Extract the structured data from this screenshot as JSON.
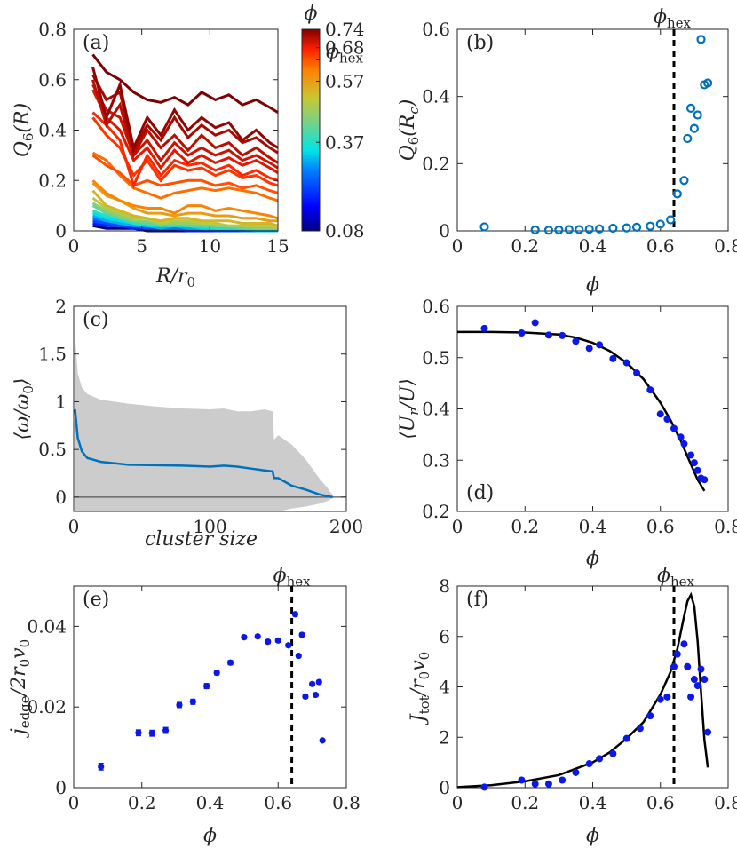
{
  "figure": {
    "phi_hex_label": "ϕhex",
    "cb_title": "ϕ"
  },
  "chart_data": [
    {
      "panel": "a",
      "panel_label": "(a)",
      "type": "line",
      "xlabel": "R/r0",
      "ylabel": "Q6(R)",
      "xlim": [
        0,
        15
      ],
      "ylim": [
        0,
        0.8
      ],
      "xticks": [
        0,
        5,
        10,
        15
      ],
      "yticks": [
        0,
        0.2,
        0.4,
        0.6,
        0.8
      ],
      "x": [
        1.4,
        2.4,
        3.4,
        4.4,
        5.4,
        6.4,
        7.4,
        8.4,
        9.4,
        10.4,
        11.4,
        12.4,
        13.4,
        14.4,
        15
      ],
      "series": [
        {
          "phi": 0.74,
          "values": [
            0.7,
            0.63,
            0.6,
            0.55,
            0.52,
            0.51,
            0.53,
            0.5,
            0.55,
            0.52,
            0.54,
            0.5,
            0.52,
            0.49,
            0.47
          ]
        },
        {
          "phi": 0.73,
          "values": [
            0.65,
            0.45,
            0.58,
            0.33,
            0.45,
            0.38,
            0.48,
            0.4,
            0.45,
            0.41,
            0.43,
            0.36,
            0.4,
            0.35,
            0.33
          ]
        },
        {
          "phi": 0.72,
          "values": [
            0.62,
            0.52,
            0.55,
            0.32,
            0.42,
            0.36,
            0.45,
            0.37,
            0.42,
            0.38,
            0.4,
            0.35,
            0.37,
            0.33,
            0.31
          ]
        },
        {
          "phi": 0.71,
          "values": [
            0.6,
            0.42,
            0.5,
            0.3,
            0.4,
            0.33,
            0.38,
            0.32,
            0.38,
            0.33,
            0.35,
            0.3,
            0.33,
            0.29,
            0.27
          ]
        },
        {
          "phi": 0.7,
          "values": [
            0.58,
            0.48,
            0.45,
            0.3,
            0.36,
            0.28,
            0.35,
            0.3,
            0.33,
            0.3,
            0.32,
            0.28,
            0.3,
            0.27,
            0.25
          ]
        },
        {
          "phi": 0.69,
          "values": [
            0.56,
            0.45,
            0.4,
            0.28,
            0.33,
            0.25,
            0.32,
            0.27,
            0.3,
            0.27,
            0.29,
            0.26,
            0.28,
            0.25,
            0.23
          ]
        },
        {
          "phi": 0.67,
          "values": [
            0.47,
            0.42,
            0.36,
            0.18,
            0.3,
            0.22,
            0.28,
            0.26,
            0.27,
            0.24,
            0.26,
            0.22,
            0.24,
            0.21,
            0.2
          ]
        },
        {
          "phi": 0.66,
          "values": [
            0.45,
            0.38,
            0.33,
            0.22,
            0.28,
            0.2,
            0.26,
            0.24,
            0.25,
            0.22,
            0.24,
            0.21,
            0.22,
            0.19,
            0.18
          ]
        },
        {
          "phi": 0.64,
          "values": [
            0.3,
            0.26,
            0.23,
            0.18,
            0.2,
            0.18,
            0.19,
            0.2,
            0.2,
            0.18,
            0.19,
            0.17,
            0.18,
            0.16,
            0.15
          ]
        },
        {
          "phi": 0.62,
          "values": [
            0.31,
            0.28,
            0.22,
            0.17,
            0.15,
            0.13,
            0.15,
            0.16,
            0.17,
            0.16,
            0.17,
            0.16,
            0.15,
            0.13,
            0.12
          ]
        },
        {
          "phi": 0.6,
          "values": [
            0.2,
            0.15,
            0.12,
            0.1,
            0.09,
            0.09,
            0.07,
            0.1,
            0.1,
            0.08,
            0.09,
            0.08,
            0.07,
            0.06,
            0.05
          ]
        },
        {
          "phi": 0.57,
          "values": [
            0.19,
            0.14,
            0.12,
            0.09,
            0.07,
            0.07,
            0.06,
            0.07,
            0.07,
            0.06,
            0.06,
            0.05,
            0.05,
            0.04,
            0.04
          ]
        },
        {
          "phi": 0.54,
          "values": [
            0.16,
            0.1,
            0.08,
            0.06,
            0.05,
            0.04,
            0.05,
            0.05,
            0.04,
            0.04,
            0.04,
            0.03,
            0.03,
            0.03,
            0.02
          ]
        },
        {
          "phi": 0.5,
          "values": [
            0.13,
            0.09,
            0.07,
            0.05,
            0.05,
            0.03,
            0.04,
            0.04,
            0.03,
            0.03,
            0.02,
            0.02,
            0.02,
            0.02,
            0.01
          ]
        },
        {
          "phi": 0.46,
          "values": [
            0.11,
            0.08,
            0.06,
            0.04,
            0.04,
            0.03,
            0.03,
            0.03,
            0.03,
            0.02,
            0.02,
            0.02,
            0.01,
            0.01,
            0.01
          ]
        },
        {
          "phi": 0.42,
          "values": [
            0.1,
            0.07,
            0.05,
            0.04,
            0.03,
            0.02,
            0.03,
            0.02,
            0.02,
            0.02,
            0.02,
            0.01,
            0.01,
            0.01,
            0.01
          ]
        },
        {
          "phi": 0.38,
          "values": [
            0.08,
            0.06,
            0.05,
            0.03,
            0.03,
            0.02,
            0.02,
            0.02,
            0.02,
            0.01,
            0.01,
            0.01,
            0.01,
            0.01,
            0.01
          ]
        },
        {
          "phi": 0.34,
          "values": [
            0.07,
            0.05,
            0.04,
            0.03,
            0.02,
            0.02,
            0.02,
            0.02,
            0.01,
            0.01,
            0.01,
            0.01,
            0.01,
            0.01,
            0.01
          ]
        },
        {
          "phi": 0.31,
          "values": [
            0.06,
            0.04,
            0.03,
            0.02,
            0.02,
            0.01,
            0.02,
            0.01,
            0.01,
            0.01,
            0.01,
            0.01,
            0.0,
            0.0,
            0.0
          ]
        },
        {
          "phi": 0.27,
          "values": [
            0.05,
            0.04,
            0.03,
            0.02,
            0.02,
            0.01,
            0.01,
            0.01,
            0.01,
            0.01,
            0.01,
            0.0,
            0.0,
            0.0,
            0.0
          ]
        },
        {
          "phi": 0.23,
          "values": [
            0.04,
            0.03,
            0.02,
            0.02,
            0.01,
            0.01,
            0.01,
            0.01,
            0.01,
            0.0,
            0.0,
            0.0,
            0.0,
            0.0,
            0.0
          ]
        },
        {
          "phi": 0.19,
          "values": [
            0.03,
            0.02,
            0.02,
            0.01,
            0.01,
            0.01,
            0.01,
            0.0,
            0.0,
            0.0,
            0.0,
            0.0,
            0.0,
            0.0,
            0.0
          ]
        },
        {
          "phi": 0.08,
          "values": [
            0.02,
            0.01,
            0.01,
            0.01,
            0.0,
            0.0,
            0.0,
            0.0,
            0.0,
            0.0,
            0.0,
            0.0,
            0.0,
            0.0,
            0.0
          ]
        }
      ],
      "colorbar": {
        "title": "ϕ",
        "ticks": [
          "0.74",
          "0.68",
          "ϕhex",
          "0.57",
          "0.37",
          "0.08"
        ],
        "range": [
          0.08,
          0.74
        ]
      }
    },
    {
      "panel": "b",
      "panel_label": "(b)",
      "type": "scatter",
      "xlabel": "ϕ",
      "ylabel": "Q6(Rc)",
      "xlim": [
        0,
        0.8
      ],
      "ylim": [
        0,
        0.6
      ],
      "xticks": [
        0,
        0.2,
        0.4,
        0.6,
        0.8
      ],
      "yticks": [
        0,
        0.2,
        0.4,
        0.6
      ],
      "vline": 0.64,
      "annotation": "ϕhex",
      "x": [
        0.08,
        0.23,
        0.27,
        0.3,
        0.33,
        0.36,
        0.39,
        0.42,
        0.46,
        0.5,
        0.53,
        0.57,
        0.6,
        0.63,
        0.65,
        0.67,
        0.68,
        0.69,
        0.7,
        0.71,
        0.72,
        0.73,
        0.74
      ],
      "y": [
        0.012,
        0.003,
        0.002,
        0.003,
        0.004,
        0.004,
        0.005,
        0.006,
        0.008,
        0.009,
        0.011,
        0.014,
        0.02,
        0.033,
        0.11,
        0.15,
        0.275,
        0.365,
        0.305,
        0.345,
        0.57,
        0.435,
        0.44
      ]
    },
    {
      "panel": "c",
      "panel_label": "(c)",
      "type": "area",
      "xlabel": "cluster size",
      "ylabel": "⟨ω/ω0⟩",
      "xlim": [
        0,
        200
      ],
      "ylim": [
        -0.15,
        2
      ],
      "xticks": [
        0,
        100,
        200
      ],
      "yticks": [
        0,
        0.5,
        1,
        1.5,
        2
      ],
      "x": [
        1,
        3,
        6,
        10,
        20,
        40,
        60,
        80,
        100,
        110,
        120,
        130,
        140,
        146,
        147,
        150,
        160,
        170,
        180,
        186,
        190
      ],
      "mean": [
        0.92,
        0.62,
        0.48,
        0.41,
        0.37,
        0.34,
        0.335,
        0.33,
        0.32,
        0.33,
        0.32,
        0.3,
        0.28,
        0.27,
        0.2,
        0.2,
        0.12,
        0.08,
        0.03,
        0.01,
        0.0
      ],
      "upper": [
        1.7,
        1.3,
        1.15,
        1.08,
        1.02,
        0.98,
        0.95,
        0.93,
        0.92,
        0.93,
        0.9,
        0.9,
        0.92,
        0.9,
        0.6,
        0.65,
        0.55,
        0.4,
        0.2,
        0.1,
        0.02
      ],
      "lower": [
        -0.15,
        -0.15,
        -0.15,
        -0.15,
        -0.15,
        -0.15,
        -0.15,
        -0.15,
        -0.15,
        -0.15,
        -0.15,
        -0.15,
        -0.15,
        -0.15,
        -0.15,
        -0.15,
        -0.12,
        -0.1,
        -0.07,
        -0.04,
        -0.01
      ],
      "hline": 0
    },
    {
      "panel": "d",
      "panel_label": "(d)",
      "type": "scatter",
      "xlabel": "ϕ",
      "ylabel": "⟨Ur/U⟩",
      "xlim": [
        0,
        0.8
      ],
      "ylim": [
        0.2,
        0.6
      ],
      "xticks": [
        0,
        0.2,
        0.4,
        0.6,
        0.8
      ],
      "yticks": [
        0.2,
        0.3,
        0.4,
        0.5,
        0.6
      ],
      "x": [
        0.08,
        0.19,
        0.23,
        0.27,
        0.31,
        0.35,
        0.39,
        0.42,
        0.46,
        0.5,
        0.53,
        0.57,
        0.6,
        0.62,
        0.64,
        0.66,
        0.67,
        0.69,
        0.7,
        0.71,
        0.72,
        0.73
      ],
      "y": [
        0.557,
        0.548,
        0.568,
        0.544,
        0.543,
        0.532,
        0.518,
        0.525,
        0.498,
        0.49,
        0.47,
        0.437,
        0.39,
        0.38,
        0.362,
        0.345,
        0.332,
        0.31,
        0.295,
        0.28,
        0.265,
        0.262
      ],
      "fit_x": [
        0,
        0.1,
        0.2,
        0.3,
        0.35,
        0.4,
        0.45,
        0.5,
        0.55,
        0.6,
        0.63,
        0.66,
        0.69,
        0.71,
        0.73
      ],
      "fit_y": [
        0.55,
        0.55,
        0.549,
        0.545,
        0.539,
        0.529,
        0.513,
        0.49,
        0.458,
        0.412,
        0.378,
        0.338,
        0.292,
        0.262,
        0.24
      ]
    },
    {
      "panel": "e",
      "panel_label": "(e)",
      "type": "scatter",
      "xlabel": "ϕ",
      "ylabel": "jedge/2r0v0",
      "xlim": [
        0,
        0.8
      ],
      "ylim": [
        0,
        0.05
      ],
      "xticks": [
        0,
        0.2,
        0.4,
        0.6,
        0.8
      ],
      "yticks": [
        0,
        0.02,
        0.04
      ],
      "vline": 0.64,
      "annotation": "ϕhex",
      "x": [
        0.08,
        0.19,
        0.23,
        0.27,
        0.31,
        0.35,
        0.39,
        0.42,
        0.46,
        0.5,
        0.54,
        0.57,
        0.6,
        0.63,
        0.65,
        0.66,
        0.67,
        0.68,
        0.7,
        0.71,
        0.72,
        0.73
      ],
      "y": [
        0.0052,
        0.0136,
        0.0135,
        0.0142,
        0.0205,
        0.0213,
        0.0252,
        0.0285,
        0.031,
        0.0373,
        0.0375,
        0.0362,
        0.0365,
        0.0353,
        0.043,
        0.0327,
        0.0379,
        0.0226,
        0.0257,
        0.023,
        0.0262,
        0.0117
      ],
      "err": [
        0.0008,
        0.0007,
        0.0007,
        0.0007,
        0.0006,
        0.0006,
        0.0006,
        0.0005,
        0.0005,
        0.0004,
        0.0004,
        0.0004,
        0.0004,
        0.0004,
        0.0004,
        0.0004,
        0.0004,
        0.0004,
        0.0004,
        0.0004,
        0.0004,
        0.0003
      ]
    },
    {
      "panel": "f",
      "panel_label": "(f)",
      "type": "scatter",
      "xlabel": "ϕ",
      "ylabel": "Jtot/r0v0",
      "xlim": [
        0,
        0.8
      ],
      "ylim": [
        0,
        8
      ],
      "xticks": [
        0,
        0.2,
        0.4,
        0.6,
        0.8
      ],
      "yticks": [
        0,
        2,
        4,
        6,
        8
      ],
      "vline": 0.64,
      "annotation": "ϕhex",
      "x": [
        0.08,
        0.19,
        0.23,
        0.27,
        0.31,
        0.35,
        0.39,
        0.42,
        0.46,
        0.5,
        0.54,
        0.57,
        0.6,
        0.62,
        0.64,
        0.65,
        0.67,
        0.68,
        0.69,
        0.7,
        0.71,
        0.72,
        0.73,
        0.74
      ],
      "y": [
        0.02,
        0.3,
        0.15,
        0.15,
        0.3,
        0.6,
        0.95,
        1.15,
        1.35,
        1.95,
        2.35,
        2.85,
        3.5,
        3.6,
        4.8,
        5.3,
        5.7,
        4.8,
        3.6,
        4.3,
        4.05,
        4.7,
        4.3,
        2.2
      ],
      "fit_x": [
        0,
        0.1,
        0.2,
        0.3,
        0.4,
        0.45,
        0.5,
        0.55,
        0.6,
        0.63,
        0.65,
        0.67,
        0.68,
        0.69,
        0.7,
        0.71,
        0.72,
        0.73,
        0.74
      ],
      "fit_y": [
        0.02,
        0.1,
        0.25,
        0.5,
        1.0,
        1.4,
        1.95,
        2.6,
        3.7,
        4.6,
        5.5,
        6.8,
        7.4,
        7.65,
        7.2,
        5.8,
        3.8,
        1.9,
        0.8
      ]
    }
  ]
}
